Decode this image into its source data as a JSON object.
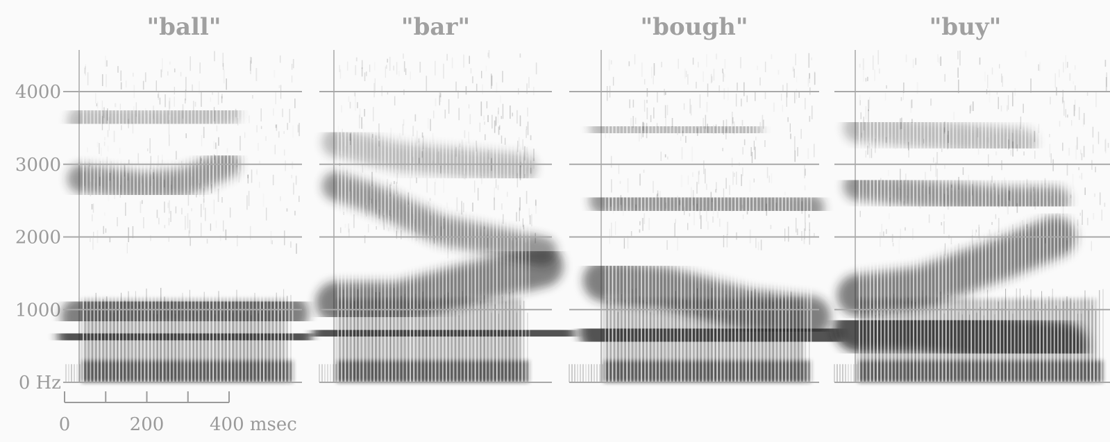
{
  "chart_data": {
    "type": "heatmap",
    "title": "",
    "ylabel": "",
    "xlabel": "",
    "y_ticks": [
      {
        "value": 0,
        "label": "0 Hz"
      },
      {
        "value": 1000,
        "label": "1000"
      },
      {
        "value": 2000,
        "label": "2000"
      },
      {
        "value": 3000,
        "label": "3000"
      },
      {
        "value": 4000,
        "label": "4000"
      }
    ],
    "x_ticks": [
      {
        "value": 0,
        "label": "0"
      },
      {
        "value": 100,
        "label": ""
      },
      {
        "value": 200,
        "label": "200"
      },
      {
        "value": 300,
        "label": ""
      },
      {
        "value": 400,
        "label": "400 msec"
      }
    ],
    "ylim": [
      0,
      4600
    ],
    "xlim_ms": [
      0,
      400
    ],
    "grid": true,
    "colors": {
      "grid": "#a8a8a8",
      "ink": "#1e1e1e",
      "title": "#a0a0a0",
      "tick_label": "#9a9a9a"
    },
    "panels": [
      {
        "title": "\"ball\"",
        "formants": [
          {
            "name": "F1",
            "points": [
              [
                0,
                650
              ],
              [
                100,
                650
              ],
              [
                300,
                640
              ],
              [
                500,
                600
              ]
            ]
          },
          {
            "name": "F2",
            "points": [
              [
                0,
                900
              ],
              [
                200,
                1050
              ],
              [
                400,
                1000
              ],
              [
                500,
                950
              ]
            ]
          },
          {
            "name": "F3",
            "points": [
              [
                0,
                2800
              ],
              [
                150,
                2700
              ],
              [
                250,
                2750
              ],
              [
                350,
                3000
              ]
            ]
          },
          {
            "name": "F4",
            "points": [
              [
                0,
                3600
              ],
              [
                200,
                3600
              ],
              [
                350,
                3700
              ]
            ]
          }
        ]
      },
      {
        "title": "\"bar\"",
        "formants": [
          {
            "name": "F1",
            "points": [
              [
                0,
                650
              ],
              [
                150,
                700
              ],
              [
                400,
                700
              ],
              [
                520,
                650
              ]
            ]
          },
          {
            "name": "F2",
            "points": [
              [
                0,
                1100
              ],
              [
                150,
                1100
              ],
              [
                350,
                1400
              ],
              [
                500,
                1600
              ]
            ]
          },
          {
            "name": "F3",
            "points": [
              [
                0,
                2700
              ],
              [
                100,
                2500
              ],
              [
                250,
                2100
              ],
              [
                500,
                1800
              ]
            ]
          },
          {
            "name": "F4",
            "points": [
              [
                0,
                3300
              ],
              [
                150,
                3100
              ],
              [
                350,
                3000
              ],
              [
                450,
                2950
              ]
            ]
          }
        ]
      },
      {
        "title": "\"bough\"",
        "formants": [
          {
            "name": "F1",
            "points": [
              [
                0,
                700
              ],
              [
                150,
                700
              ],
              [
                350,
                650
              ],
              [
                520,
                600
              ]
            ]
          },
          {
            "name": "F2",
            "points": [
              [
                0,
                1400
              ],
              [
                150,
                1300
              ],
              [
                350,
                1000
              ],
              [
                500,
                900
              ]
            ]
          },
          {
            "name": "F3",
            "points": [
              [
                0,
                2500
              ],
              [
                200,
                2450
              ],
              [
                400,
                2450
              ],
              [
                500,
                2400
              ]
            ]
          },
          {
            "name": "F4",
            "points": [
              [
                0,
                3500
              ],
              [
                200,
                3500
              ],
              [
                350,
                3450
              ]
            ]
          }
        ]
      },
      {
        "title": "\"buy\"",
        "formants": [
          {
            "name": "F1",
            "points": [
              [
                0,
                750
              ],
              [
                150,
                750
              ],
              [
                350,
                600
              ],
              [
                500,
                500
              ]
            ]
          },
          {
            "name": "F2",
            "points": [
              [
                0,
                1200
              ],
              [
                150,
                1300
              ],
              [
                350,
                1700
              ],
              [
                480,
                2000
              ]
            ]
          },
          {
            "name": "F3",
            "points": [
              [
                0,
                2700
              ],
              [
                150,
                2600
              ],
              [
                350,
                2500
              ],
              [
                480,
                2500
              ]
            ]
          },
          {
            "name": "F4",
            "points": [
              [
                0,
                3500
              ],
              [
                200,
                3400
              ],
              [
                400,
                3300
              ]
            ]
          }
        ]
      }
    ]
  }
}
